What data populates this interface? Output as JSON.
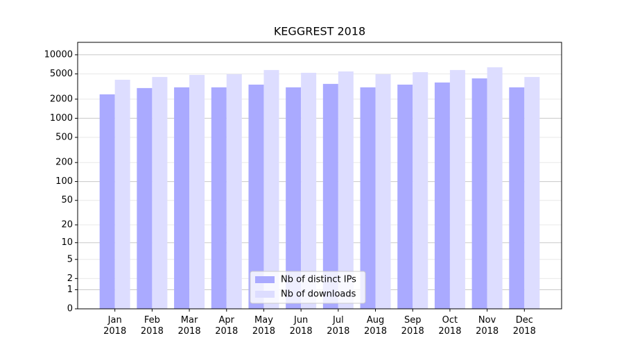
{
  "chart_data": {
    "type": "bar",
    "title": "KEGGREST 2018",
    "categories": [
      "Jan 2018",
      "Feb 2018",
      "Mar 2018",
      "Apr 2018",
      "May 2018",
      "Jun 2018",
      "Jul 2018",
      "Aug 2018",
      "Sep 2018",
      "Oct 2018",
      "Nov 2018",
      "Dec 2018"
    ],
    "series": [
      {
        "name": "Nb of distinct IPs",
        "color": "#aaaaff",
        "values": [
          2380,
          2990,
          3070,
          3070,
          3390,
          3070,
          3480,
          3070,
          3390,
          3660,
          4250,
          3070
        ]
      },
      {
        "name": "Nb of downloads",
        "color": "#ddddff",
        "values": [
          4040,
          4470,
          4820,
          4940,
          5750,
          5200,
          5470,
          4940,
          5330,
          5750,
          6360,
          4470
        ]
      }
    ],
    "scale": "log1p",
    "ylim": [
      0,
      15700
    ],
    "yticks": [
      0,
      1,
      2,
      5,
      10,
      20,
      50,
      100,
      200,
      500,
      1000,
      2000,
      5000,
      10000
    ],
    "grid": true,
    "legend": "lower center"
  }
}
